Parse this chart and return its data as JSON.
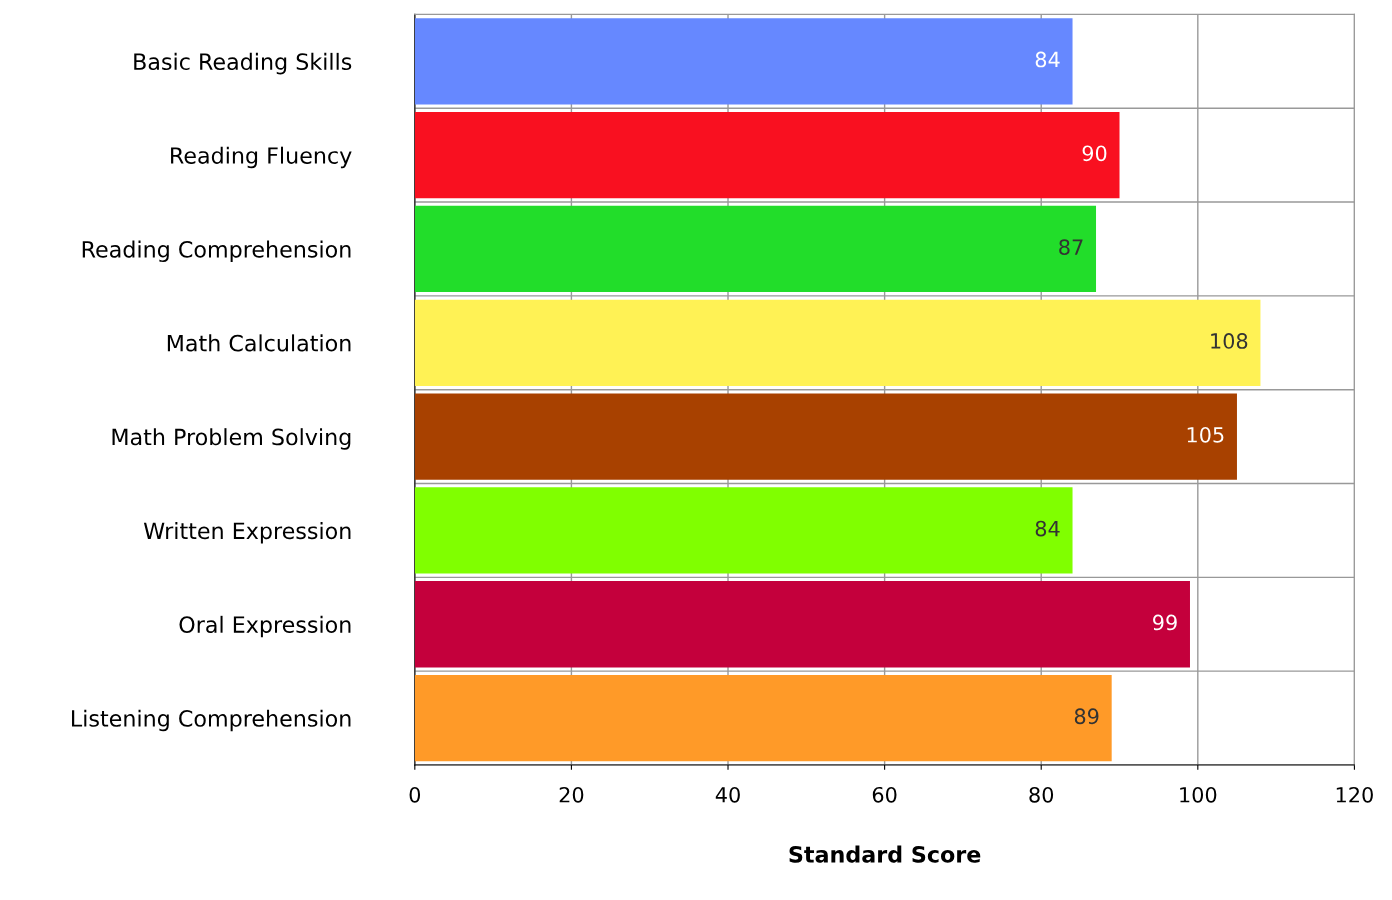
{
  "chart_data": {
    "type": "bar",
    "orientation": "horizontal",
    "xlabel": "Standard Score",
    "categories": [
      "Basic Reading Skills",
      "Reading Fluency",
      "Reading Comprehension",
      "Math Calculation",
      "Math Problem Solving",
      "Written Expression",
      "Oral Expression",
      "Listening Comprehension"
    ],
    "values": [
      84,
      90,
      87,
      108,
      105,
      84,
      99,
      89
    ],
    "colors": [
      "#6688ff",
      "#f91020",
      "#22dd2a",
      "#fff255",
      "#a84100",
      "#80ff00",
      "#c4003c",
      "#ff9a28"
    ],
    "xlim": [
      0,
      120
    ],
    "xticks": [
      0,
      20,
      40,
      60,
      80,
      100,
      120
    ],
    "grid": true,
    "data_labels": true
  }
}
